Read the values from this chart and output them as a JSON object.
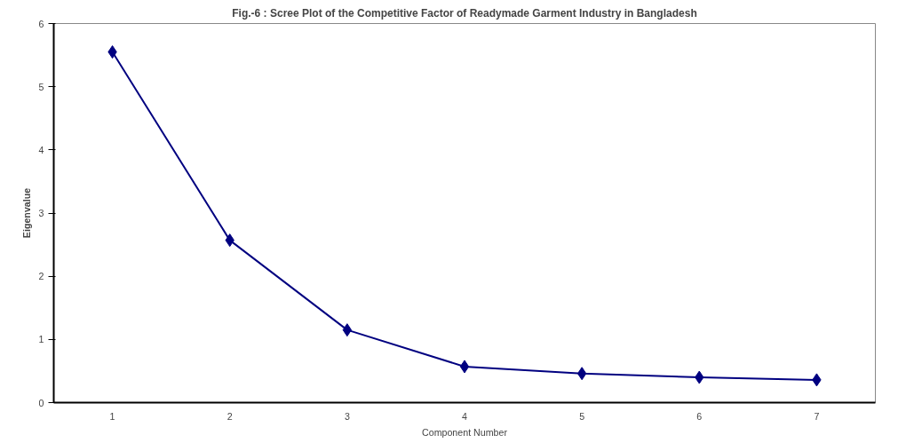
{
  "chart_data": {
    "type": "line",
    "title": "Fig.-6 : Scree Plot of the Competitive Factor of Readymade Garment Industry in Bangladesh",
    "xlabel": "Component Number",
    "ylabel": "Eigenvalue",
    "categories": [
      "1",
      "2",
      "3",
      "4",
      "5",
      "6",
      "7"
    ],
    "series": [
      {
        "color": "#000080",
        "values": [
          5.55,
          2.57,
          1.15,
          0.57,
          0.46,
          0.4,
          0.36
        ]
      }
    ],
    "ylim": [
      0,
      6
    ],
    "yticks": [
      0,
      1,
      2,
      3,
      4,
      5,
      6
    ],
    "grid": false,
    "marker": "diamond",
    "line_style": "solid"
  }
}
